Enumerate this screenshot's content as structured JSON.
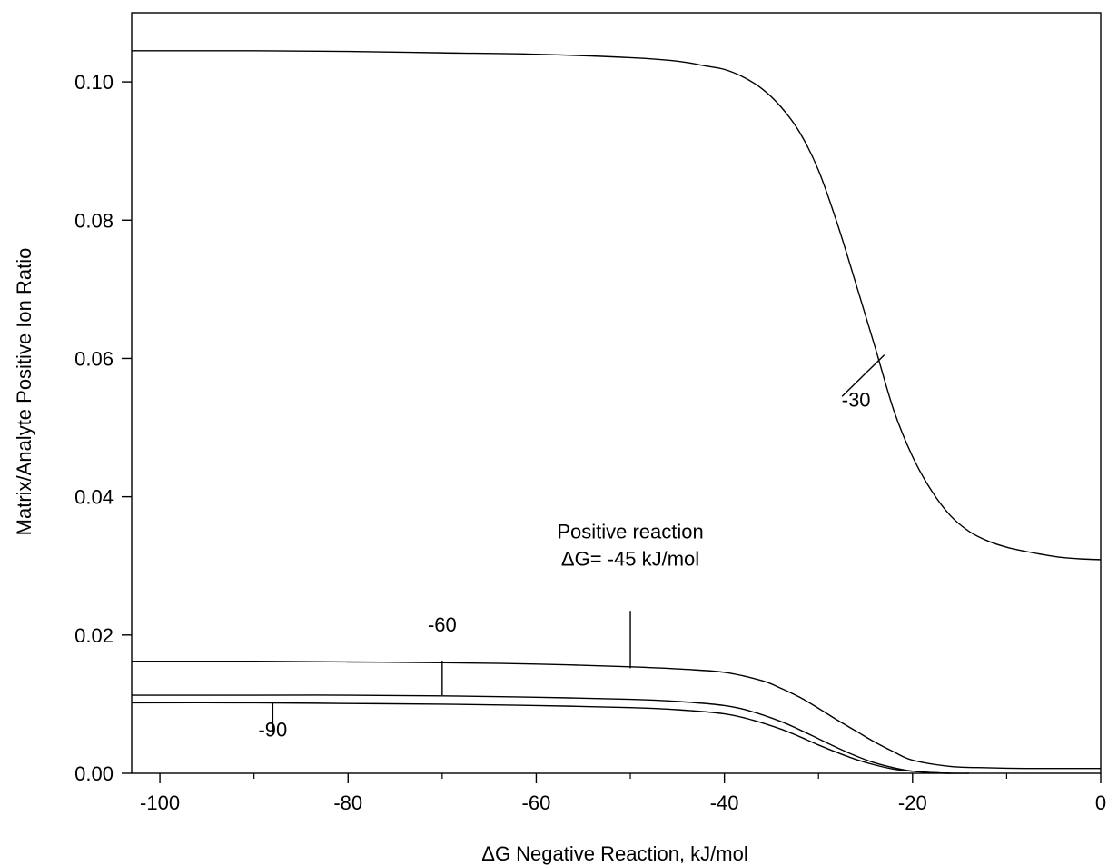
{
  "chart_data": {
    "type": "line",
    "title": "",
    "xlabel": "ΔG Negative Reaction, kJ/mol",
    "ylabel": "Matrix/Analyte Positive Ion Ratio",
    "xlim": [
      -103,
      0
    ],
    "ylim": [
      0,
      0.11
    ],
    "xticks": [
      -100,
      -80,
      -60,
      -40,
      -20,
      0
    ],
    "xtick_labels": [
      "-100",
      "-80",
      "-60",
      "-40",
      "-20",
      "0"
    ],
    "xminor_step": 10,
    "yticks": [
      0,
      0.02,
      0.04,
      0.06,
      0.08,
      0.1
    ],
    "ytick_labels": [
      "0.00",
      "0.02",
      "0.04",
      "0.06",
      "0.08",
      "0.10"
    ],
    "grid": false,
    "legend": "none",
    "line_color": "#000000",
    "series": [
      {
        "label": "-30",
        "x": [
          -103,
          -90,
          -80,
          -70,
          -60,
          -50,
          -45,
          -42,
          -40,
          -38,
          -36,
          -34,
          -32,
          -30,
          -28,
          -26,
          -24,
          -22,
          -20,
          -18,
          -16,
          -14,
          -12,
          -10,
          -8,
          -6,
          -4,
          -2,
          0
        ],
        "y": [
          0.1045,
          0.1045,
          0.1044,
          0.1042,
          0.104,
          0.1035,
          0.103,
          0.1023,
          0.1018,
          0.1007,
          0.099,
          0.0964,
          0.0927,
          0.0872,
          0.0795,
          0.0707,
          0.0617,
          0.0525,
          0.0458,
          0.0409,
          0.0373,
          0.035,
          0.0336,
          0.0327,
          0.0321,
          0.0316,
          0.0312,
          0.031,
          0.0309
        ]
      },
      {
        "label": "Positive reaction ΔG= -45 kJ/mol",
        "x": [
          -103,
          -90,
          -80,
          -70,
          -60,
          -50,
          -45,
          -40,
          -36,
          -34,
          -32,
          -30,
          -28,
          -26,
          -24,
          -22,
          -20,
          -16,
          -12,
          -8,
          -4,
          0
        ],
        "y": [
          0.0162,
          0.0162,
          0.0161,
          0.016,
          0.0158,
          0.0154,
          0.0151,
          0.0146,
          0.0134,
          0.0123,
          0.011,
          0.0094,
          0.0077,
          0.0061,
          0.0045,
          0.0031,
          0.0019,
          0.001,
          0.0008,
          0.0007,
          0.0007,
          0.0007
        ]
      },
      {
        "label": "-60",
        "x": [
          -103,
          -90,
          -80,
          -70,
          -60,
          -50,
          -45,
          -40,
          -37,
          -34,
          -32,
          -30,
          -28,
          -26,
          -24,
          -22,
          -20,
          -18,
          -16
        ],
        "y": [
          0.0113,
          0.0113,
          0.0113,
          0.0112,
          0.011,
          0.0107,
          0.0104,
          0.0098,
          0.0089,
          0.0075,
          0.0063,
          0.005,
          0.0037,
          0.0025,
          0.0015,
          0.0008,
          0.0003,
          0.0001,
          0.0
        ]
      },
      {
        "label": "-90",
        "x": [
          -103,
          -90,
          -80,
          -70,
          -60,
          -50,
          -45,
          -40,
          -37,
          -34,
          -32,
          -30,
          -28,
          -26,
          -24,
          -22,
          -20,
          -18,
          -16,
          -14
        ],
        "y": [
          0.0102,
          0.0102,
          0.0101,
          0.01,
          0.0098,
          0.0095,
          0.0092,
          0.0086,
          0.0077,
          0.0064,
          0.0053,
          0.0041,
          0.003,
          0.002,
          0.0012,
          0.0006,
          0.0003,
          0.0001,
          0.0,
          0.0
        ]
      }
    ],
    "annotations": [
      {
        "name": "label-30",
        "lines": [
          "-30"
        ],
        "at": [
          -26,
          0.053
        ],
        "pointer": [
          [
            -23,
            0.0605
          ],
          [
            -27.5,
            0.0545
          ]
        ]
      },
      {
        "name": "label-positive-reaction",
        "lines": [
          "Positive reaction",
          "ΔG= -45 kJ/mol"
        ],
        "at": [
          -50,
          0.034
        ],
        "pointer": [
          [
            -50,
            0.0152
          ],
          [
            -50,
            0.0235
          ]
        ]
      },
      {
        "name": "label-60",
        "lines": [
          "-60"
        ],
        "at": [
          -70,
          0.0205
        ],
        "pointer": [
          [
            -70,
            0.0113
          ],
          [
            -70,
            0.0163
          ]
        ]
      },
      {
        "name": "label-90",
        "lines": [
          "-90"
        ],
        "at": [
          -88,
          0.0053
        ],
        "pointer": [
          [
            -88,
            0.0102
          ],
          [
            -88,
            0.006
          ]
        ]
      }
    ]
  }
}
